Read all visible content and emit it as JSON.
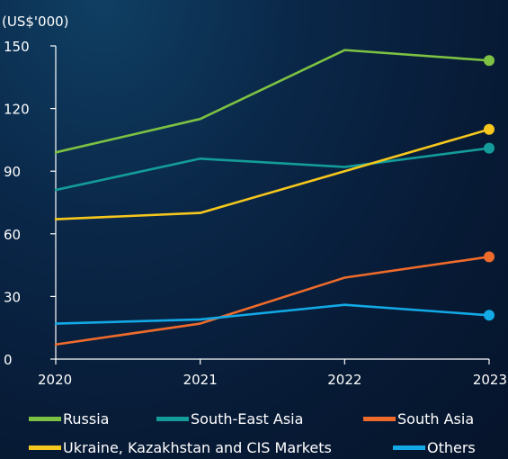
{
  "chart_data": {
    "type": "line",
    "unit_label": "(US$'000)",
    "x": [
      "2020",
      "2021",
      "2022",
      "2023"
    ],
    "ylim": [
      0,
      150
    ],
    "yticks": [
      0,
      30,
      60,
      90,
      120,
      150
    ],
    "grid": false,
    "legend_position": "bottom",
    "series": [
      {
        "name": "Russia",
        "color": "#7dc242",
        "values": [
          99,
          115,
          148,
          143
        ]
      },
      {
        "name": "South-East Asia",
        "color": "#139c9a",
        "values": [
          81,
          96,
          92,
          101
        ]
      },
      {
        "name": "South Asia",
        "color": "#ef6b2b",
        "values": [
          7,
          17,
          39,
          49
        ]
      },
      {
        "name": "Ukraine, Kazakhstan and CIS Markets",
        "color": "#f6c71c",
        "values": [
          67,
          70,
          90,
          110
        ]
      },
      {
        "name": "Others",
        "color": "#12a9e6",
        "values": [
          17,
          19,
          26,
          21
        ]
      }
    ]
  }
}
